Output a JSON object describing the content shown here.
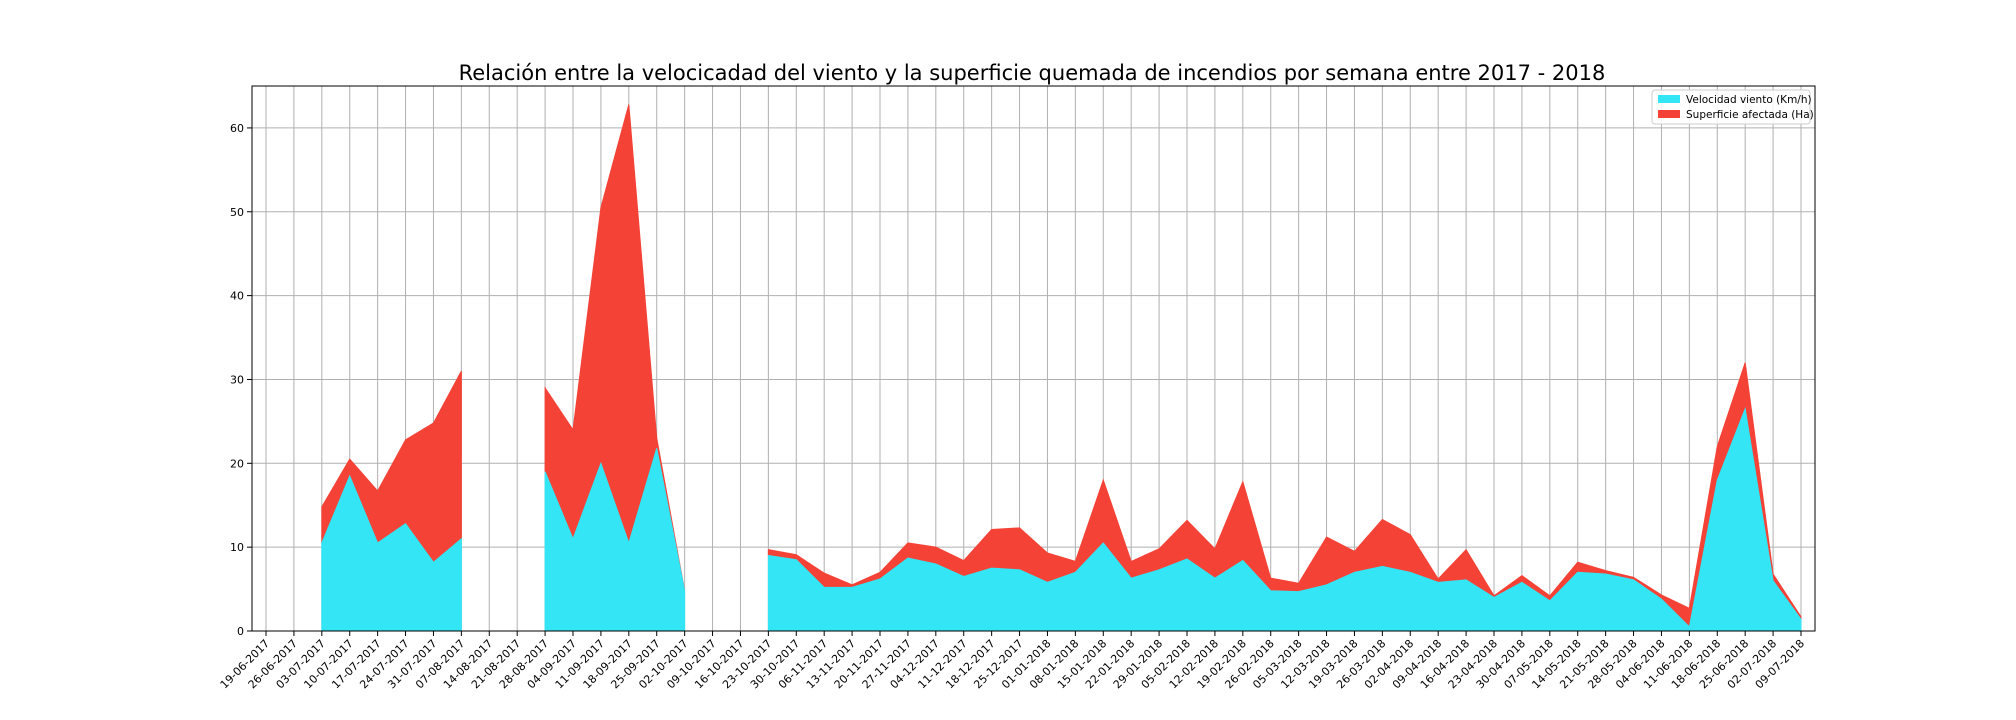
{
  "chart_data": {
    "type": "area",
    "stacked": true,
    "title": "Relación entre la velocicadad del viento y la superficie quemada de incendios por semana entre 2017 - 2018",
    "xlabel": "",
    "ylabel": "",
    "ylim": [
      0,
      65
    ],
    "yticks": [
      0,
      10,
      20,
      30,
      40,
      50,
      60
    ],
    "grid": true,
    "legend_position": "top-right",
    "categories": [
      "19-06-2017",
      "26-06-2017",
      "03-07-2017",
      "10-07-2017",
      "17-07-2017",
      "24-07-2017",
      "31-07-2017",
      "07-08-2017",
      "14-08-2017",
      "21-08-2017",
      "28-08-2017",
      "04-09-2017",
      "11-09-2017",
      "18-09-2017",
      "25-09-2017",
      "02-10-2017",
      "09-10-2017",
      "16-10-2017",
      "23-10-2017",
      "30-10-2017",
      "06-11-2017",
      "13-11-2017",
      "20-11-2017",
      "27-11-2017",
      "04-12-2017",
      "11-12-2017",
      "18-12-2017",
      "25-12-2017",
      "01-01-2018",
      "08-01-2018",
      "15-01-2018",
      "22-01-2018",
      "29-01-2018",
      "05-02-2018",
      "12-02-2018",
      "19-02-2018",
      "26-02-2018",
      "05-03-2018",
      "12-03-2018",
      "19-03-2018",
      "26-03-2018",
      "02-04-2018",
      "09-04-2018",
      "16-04-2018",
      "23-04-2018",
      "30-04-2018",
      "07-05-2018",
      "14-05-2018",
      "21-05-2018",
      "28-05-2018",
      "04-06-2018",
      "11-06-2018",
      "18-06-2018",
      "25-06-2018",
      "02-07-2018",
      "09-07-2018"
    ],
    "series": [
      {
        "name": "Velocidad viento (Km/h)",
        "color": "#33e5f5",
        "values": [
          null,
          null,
          10.5,
          18.5,
          10.5,
          12.8,
          8.2,
          11,
          null,
          null,
          19,
          11,
          20,
          10.5,
          21.8,
          4.8,
          null,
          null,
          9,
          8.5,
          5.2,
          5.2,
          6.2,
          8.7,
          8,
          6.5,
          7.5,
          7.3,
          5.8,
          7,
          10.5,
          6.3,
          7.3,
          8.6,
          6.3,
          8.4,
          4.8,
          4.7,
          5.5,
          7,
          7.7,
          7,
          5.8,
          6.1,
          4,
          5.8,
          3.6,
          7,
          6.8,
          6.1,
          3.8,
          0.5,
          18,
          26.5,
          6,
          1.4
        ]
      },
      {
        "name": "Superficie afectada (Ha)",
        "color": "#f44236",
        "values": [
          null,
          null,
          4.3,
          2,
          6.2,
          10,
          16.6,
          20,
          null,
          null,
          10,
          13,
          30.5,
          52.3,
          1.2,
          0,
          null,
          null,
          0.7,
          0.6,
          1.7,
          0.3,
          0.8,
          1.8,
          2,
          1.9,
          4.6,
          5,
          3.5,
          1.3,
          7.5,
          2,
          2.5,
          4.6,
          3.5,
          9.4,
          1.5,
          1,
          5.7,
          2.5,
          5.6,
          4.5,
          0.4,
          3.6,
          0.2,
          0.8,
          0.6,
          1.2,
          0.4,
          0.3,
          0.5,
          2.2,
          4,
          5.5,
          0.8,
          0.3
        ]
      }
    ]
  }
}
